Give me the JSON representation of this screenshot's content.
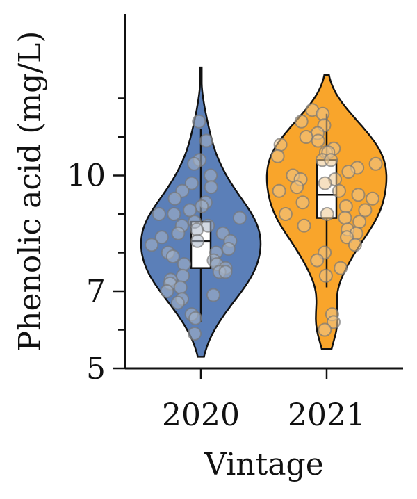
{
  "chart_data": {
    "type": "violin",
    "title": "",
    "xlabel": "Vintage",
    "ylabel": "Phenolic acid (mg/L)",
    "ylim": [
      5,
      12.9
    ],
    "yticks_major": [
      5,
      7,
      10
    ],
    "yticks_minor": [
      6,
      8,
      9,
      11,
      12
    ],
    "grid": false,
    "legend": "none",
    "categories": [
      "2020",
      "2021"
    ],
    "series": [
      {
        "category": "2020",
        "color": "#5b7fb8",
        "point_color": "#a9b6c8",
        "violin_range": [
          5.3,
          12.8
        ],
        "q1": 7.6,
        "median": 8.3,
        "q3": 8.8,
        "whisker_low": 6.2,
        "whisker_high": 11.2,
        "points": [
          11.4,
          10.9,
          10.4,
          10.3,
          10.0,
          9.8,
          9.7,
          9.6,
          9.4,
          9.3,
          9.2,
          9.1,
          9.0,
          9.0,
          8.9,
          8.8,
          8.7,
          8.7,
          8.6,
          8.5,
          8.5,
          8.4,
          8.3,
          8.3,
          8.2,
          8.1,
          8.0,
          8.0,
          7.9,
          7.8,
          7.7,
          7.7,
          7.6,
          7.5,
          7.5,
          7.4,
          7.3,
          7.2,
          7.1,
          7.0,
          6.9,
          6.8,
          6.7,
          6.4,
          6.3,
          5.9
        ]
      },
      {
        "category": "2021",
        "color": "#f9a52b",
        "point_color": "#efc98f",
        "violin_range": [
          5.5,
          12.6
        ],
        "q1": 8.9,
        "median": 9.5,
        "q3": 10.4,
        "whisker_low": 7.1,
        "whisker_high": 11.6,
        "points": [
          11.7,
          11.6,
          11.4,
          11.3,
          11.1,
          11.0,
          10.9,
          10.8,
          10.7,
          10.6,
          10.6,
          10.5,
          10.4,
          10.4,
          10.3,
          10.2,
          10.1,
          10.0,
          9.9,
          9.9,
          9.8,
          9.7,
          9.6,
          9.6,
          9.5,
          9.4,
          9.3,
          9.2,
          9.1,
          9.0,
          9.0,
          8.9,
          8.8,
          8.7,
          8.6,
          8.5,
          8.4,
          8.2,
          8.0,
          7.8,
          7.6,
          7.4,
          6.4,
          6.2,
          6.0
        ]
      }
    ]
  }
}
